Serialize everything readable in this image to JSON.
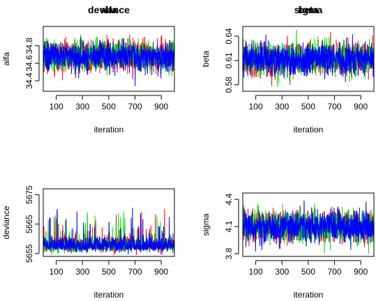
{
  "colors": {
    "chain1": "#ff0000",
    "chain2": "#00dd00",
    "chain3": "#0000ff",
    "axis": "#000000",
    "background": "#ffffff"
  },
  "chart_data": [
    {
      "type": "line",
      "title": "alfa",
      "xlabel": "iteration",
      "ylabel": "alfa",
      "x_ticks": [
        "100",
        "300",
        "500",
        "700",
        "900"
      ],
      "y_ticks": [
        "34.4",
        "34.6",
        "34.8"
      ],
      "xlim": [
        1,
        1000
      ],
      "ylim": [
        34.28,
        35.02
      ],
      "series": [
        {
          "color": "#ff0000",
          "center": 34.68,
          "sd": 0.085,
          "rho": 0.15,
          "spike_prob": 0,
          "spike_scale": 0,
          "clip": [
            34.3,
            35.0
          ]
        },
        {
          "color": "#00dd00",
          "center": 34.68,
          "sd": 0.085,
          "rho": 0.15,
          "spike_prob": 0,
          "spike_scale": 0,
          "clip": [
            34.3,
            35.0
          ]
        },
        {
          "color": "#0000ff",
          "center": 34.68,
          "sd": 0.085,
          "rho": 0.15,
          "spike_prob": 0,
          "spike_scale": 0,
          "clip": [
            34.3,
            35.0
          ]
        }
      ]
    },
    {
      "type": "line",
      "title": "beta",
      "xlabel": "iteration",
      "ylabel": "beta",
      "x_ticks": [
        "100",
        "300",
        "500",
        "700",
        "900"
      ],
      "y_ticks": [
        "0.58",
        "0.61",
        "0.64"
      ],
      "xlim": [
        1,
        1000
      ],
      "ylim": [
        0.572,
        0.652
      ],
      "series": [
        {
          "color": "#ff0000",
          "center": 0.612,
          "sd": 0.01,
          "rho": 0.15,
          "spike_prob": 0,
          "spike_scale": 0,
          "clip": [
            0.575,
            0.65
          ]
        },
        {
          "color": "#00dd00",
          "center": 0.612,
          "sd": 0.01,
          "rho": 0.15,
          "spike_prob": 0,
          "spike_scale": 0,
          "clip": [
            0.575,
            0.65
          ]
        },
        {
          "color": "#0000ff",
          "center": 0.612,
          "sd": 0.01,
          "rho": 0.15,
          "spike_prob": 0,
          "spike_scale": 0,
          "clip": [
            0.575,
            0.65
          ]
        }
      ]
    },
    {
      "type": "line",
      "title": "deviance",
      "xlabel": "iteration",
      "ylabel": "deviance",
      "x_ticks": [
        "100",
        "300",
        "500",
        "700",
        "900"
      ],
      "y_ticks": [
        "5655",
        "5665",
        "5675"
      ],
      "xlim": [
        1,
        1000
      ],
      "ylim": [
        5654,
        5677
      ],
      "series": [
        {
          "color": "#ff0000",
          "center": 5657.5,
          "sd": 1.6,
          "rho": 0.2,
          "spike_prob": 0.03,
          "spike_scale": 8,
          "clip": [
            5654.5,
            5676
          ]
        },
        {
          "color": "#00dd00",
          "center": 5657.5,
          "sd": 1.6,
          "rho": 0.2,
          "spike_prob": 0.03,
          "spike_scale": 8,
          "clip": [
            5654.5,
            5676
          ]
        },
        {
          "color": "#0000ff",
          "center": 5657.5,
          "sd": 1.6,
          "rho": 0.2,
          "spike_prob": 0.03,
          "spike_scale": 8,
          "clip": [
            5654.5,
            5676
          ]
        }
      ]
    },
    {
      "type": "line",
      "title": "sigma",
      "xlabel": "iteration",
      "ylabel": "sigma",
      "x_ticks": [
        "100",
        "300",
        "500",
        "700",
        "900"
      ],
      "y_ticks": [
        "3.8",
        "4.1",
        "4.4"
      ],
      "xlim": [
        1,
        1000
      ],
      "ylim": [
        3.77,
        4.47
      ],
      "series": [
        {
          "color": "#ff0000",
          "center": 4.1,
          "sd": 0.085,
          "rho": 0.15,
          "spike_prob": 0,
          "spike_scale": 0,
          "clip": [
            3.8,
            4.45
          ]
        },
        {
          "color": "#00dd00",
          "center": 4.1,
          "sd": 0.085,
          "rho": 0.15,
          "spike_prob": 0,
          "spike_scale": 0,
          "clip": [
            3.8,
            4.45
          ]
        },
        {
          "color": "#0000ff",
          "center": 4.1,
          "sd": 0.085,
          "rho": 0.15,
          "spike_prob": 0,
          "spike_scale": 0,
          "clip": [
            3.8,
            4.45
          ]
        }
      ]
    }
  ]
}
